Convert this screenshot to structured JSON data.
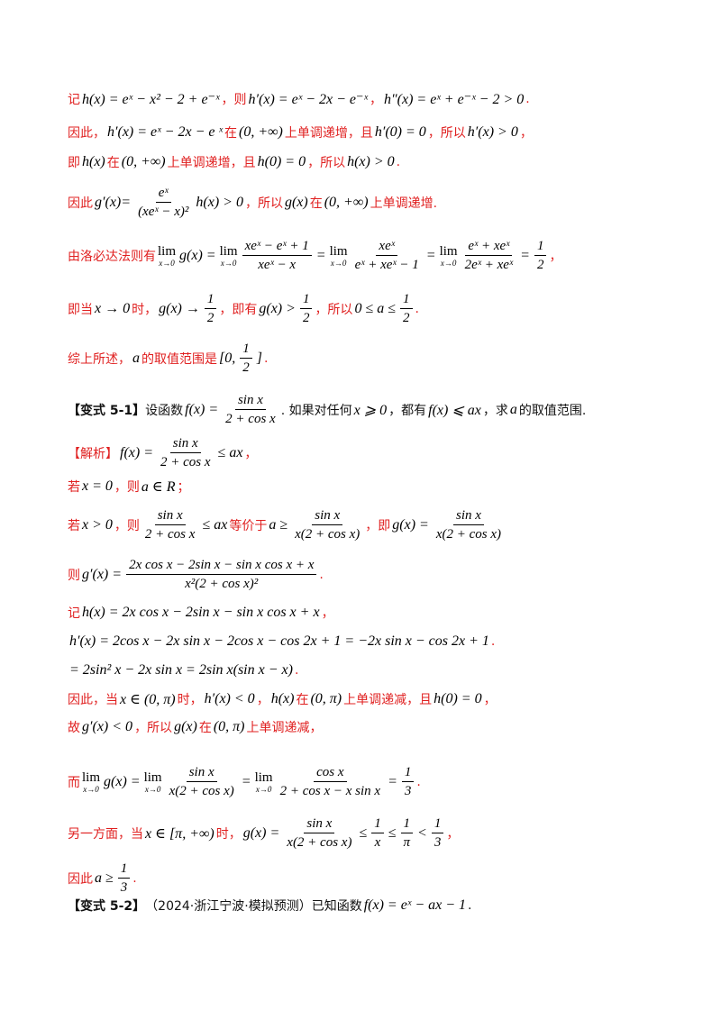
{
  "lines": {
    "l1": {
      "t1": "记",
      "m1": "h(x) = eˣ − x² − 2 + e⁻ˣ",
      "t2": "，则",
      "m2": "h′(x) = eˣ − 2x − e⁻ˣ",
      "t3": "，",
      "m3": "h″(x) = eˣ + e⁻ˣ − 2 > 0",
      "t4": "."
    },
    "l2": {
      "t1": "因此，",
      "m1": "h′(x) = eˣ − 2x − e ˣ",
      "t2": "在",
      "m2": "(0, +∞)",
      "t3": "上单调递增，且",
      "m3": "h′(0) = 0",
      "t4": "，所以",
      "m4": "h′(x) > 0",
      "t5": "，"
    },
    "l3": {
      "t1": "即",
      "m1": "h(x)",
      "t2": "在",
      "m2": "(0, +∞)",
      "t3": "上单调递增，且",
      "m3": "h(0) = 0",
      "t4": "，所以",
      "m4": "h(x) > 0",
      "t5": "."
    },
    "l4": {
      "t1": "因此",
      "m1": "g′(x)=",
      "num": "eˣ",
      "den": "(xeˣ − x)²",
      "m2": "h(x) > 0",
      "t2": "，所以",
      "m3": "g(x)",
      "t3": "在",
      "m4": "(0, +∞)",
      "t4": "上单调递增."
    },
    "l5": {
      "t1": "由洛必达法则有",
      "lim": "lim",
      "sub": "x→0",
      "m1": "g(x) =",
      "n1": "xeˣ − eˣ + 1",
      "d1": "xeˣ − x",
      "n2": "xeˣ",
      "d2": "eˣ + xeˣ − 1",
      "n3": "eˣ + xeˣ",
      "d3": "2eˣ + xeˣ",
      "n4": "1",
      "d4": "2",
      "t2": "，"
    },
    "l6": {
      "t1": "即当",
      "m1": "x → 0",
      "t2": "时，",
      "m2": "g(x) →",
      "n1": "1",
      "d1": "2",
      "t3": "，即有",
      "m3": "g(x) >",
      "n2": "1",
      "d2": "2",
      "t4": "，所以",
      "m4": "0 ≤ a ≤",
      "n3": "1",
      "d3": "2",
      "t5": "."
    },
    "l7": {
      "t1": "综上所述，",
      "m1": "a",
      "t2": "的取值范围是",
      "m2a": "[0,",
      "n1": "1",
      "d1": "2",
      "m2b": "]",
      "t3": "."
    },
    "l8": {
      "tag": "【变式 5-1】",
      "t1": "设函数",
      "m1": "f(x) =",
      "n1": "sin x",
      "d1": "2 + cos x",
      "t2": ". 如果对任何",
      "m2": "x ⩾ 0",
      "t3": "，都有",
      "m3": "f(x) ⩽ ax",
      "t4": "，求",
      "m4": "a",
      "t5": "的取值范围."
    },
    "l9": {
      "tag": "【解析】",
      "m1": "f(x) =",
      "n1": "sin x",
      "d1": "2 + cos x",
      "m2": "≤ ax",
      "t1": "，"
    },
    "l10": {
      "t1": "若",
      "m1": "x = 0",
      "t2": "，则",
      "m2": "a ∈ R",
      "t3": "；"
    },
    "l11": {
      "t1": "若",
      "m1": "x > 0",
      "t2": "，则",
      "n1": "sin x",
      "d1": "2 + cos x",
      "m2": "≤ ax",
      "t3": "等价于",
      "m3": "a ≥",
      "n2": "sin x",
      "d2": "x(2 + cos x)",
      "t4": "，即",
      "m4": "g(x) =",
      "n3": "sin x",
      "d3": "x(2 + cos x)"
    },
    "l12": {
      "t1": "则",
      "m1": "g′(x) =",
      "n1": "2x cos x − 2sin x − sin x cos x + x",
      "d1": "x²(2 + cos x)²",
      "t2": "."
    },
    "l13": {
      "t1": "记",
      "m1": "h(x) = 2x cos x − 2sin x − sin x cos x + x",
      "t2": "，"
    },
    "l14": {
      "m1": "h′(x) = 2cos x − 2x sin x − 2cos x − cos 2x + 1 = −2x sin x − cos 2x + 1",
      "t1": "."
    },
    "l15": {
      "m1": "= 2sin² x − 2x sin x = 2sin x(sin x − x)",
      "t1": "."
    },
    "l16": {
      "t1": "因此，当",
      "m1": "x ∈ (0, π)",
      "t2": "时，",
      "m2": "h′(x) < 0",
      "t3": "，",
      "m3": "h(x)",
      "t4": "在",
      "m4": "(0, π)",
      "t5": "上单调递减，且",
      "m5": "h(0) = 0",
      "t6": "，"
    },
    "l17": {
      "t1": "故",
      "m1": "g′(x) < 0",
      "t2": "，所以",
      "m2": "g(x)",
      "t3": "在",
      "m3": "(0, π)",
      "t4": "上单调递减，"
    },
    "l18": {
      "t1": "而",
      "lim": "lim",
      "sub": "x→0",
      "m1": "g(x) =",
      "n1": "sin x",
      "d1": "x(2 + cos x)",
      "n2": "cos x",
      "d2": "2 + cos x − x sin x",
      "n3": "1",
      "d3": "3",
      "t2": "."
    },
    "l19": {
      "t1": "另一方面，当",
      "m1": "x ∈ [π, +∞)",
      "t2": "时，",
      "m2": "g(x) =",
      "n1": "sin x",
      "d1": "x(2 + cos x)",
      "n2": "1",
      "d2": "x",
      "n3": "1",
      "d3": "π",
      "n4": "1",
      "d4": "3",
      "t3": "，"
    },
    "l20": {
      "t1": "因此",
      "m1": "a ≥",
      "n1": "1",
      "d1": "3",
      "t2": "."
    },
    "l21": {
      "tag": "【变式 5-2】",
      "t1": "（2024·浙江宁波·模拟预测）已知函数",
      "m1": "f(x) = eˣ − ax − 1",
      "t2": "."
    }
  }
}
